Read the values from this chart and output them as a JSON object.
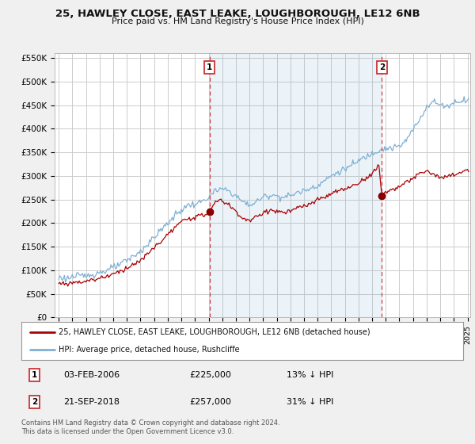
{
  "title1": "25, HAWLEY CLOSE, EAST LEAKE, LOUGHBOROUGH, LE12 6NB",
  "title2": "Price paid vs. HM Land Registry's House Price Index (HPI)",
  "ylabel_ticks": [
    "£0",
    "£50K",
    "£100K",
    "£150K",
    "£200K",
    "£250K",
    "£300K",
    "£350K",
    "£400K",
    "£450K",
    "£500K",
    "£550K"
  ],
  "ytick_values": [
    0,
    50000,
    100000,
    150000,
    200000,
    250000,
    300000,
    350000,
    400000,
    450000,
    500000,
    550000
  ],
  "ylim": [
    0,
    560000
  ],
  "background_color": "#f0f0f0",
  "plot_bg": "#ffffff",
  "grid_color": "#cccccc",
  "sale1_date": "03-FEB-2006",
  "sale1_price": 225000,
  "sale1_hpi_pct": "13% ↓ HPI",
  "sale1_x": 2006.08,
  "sale2_date": "21-SEP-2018",
  "sale2_price": 257000,
  "sale2_hpi_pct": "31% ↓ HPI",
  "sale2_x": 2018.72,
  "legend_line1": "25, HAWLEY CLOSE, EAST LEAKE, LOUGHBOROUGH, LE12 6NB (detached house)",
  "legend_line2": "HPI: Average price, detached house, Rushcliffe",
  "footnote": "Contains HM Land Registry data © Crown copyright and database right 2024.\nThis data is licensed under the Open Government Licence v3.0.",
  "sale_color": "#aa0000",
  "hpi_color": "#7eb0d5",
  "hpi_fill": "#ddeeff",
  "marker_color": "#880000",
  "vline_color": "#cc4444",
  "annotation_border_color": "#cc3333",
  "xlim_left": 1994.7,
  "xlim_right": 2025.2
}
